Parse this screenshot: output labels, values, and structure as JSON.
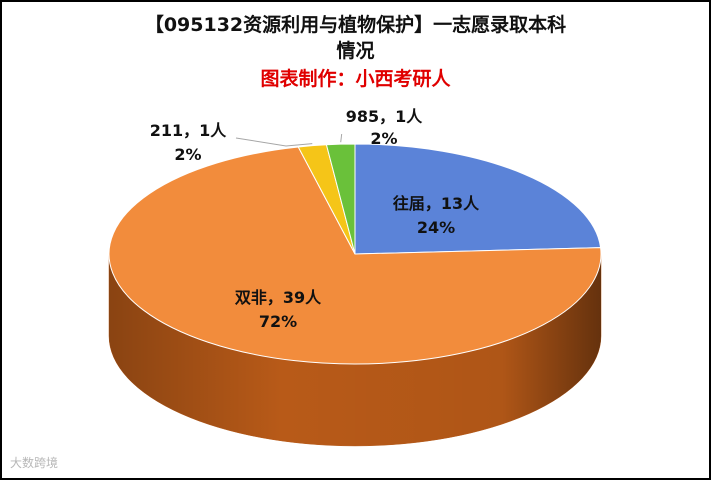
{
  "title_line1": "【095132资源利用与植物保护】一志愿录取本科",
  "title_line2": "情况",
  "subtitle": "图表制作：小西考研人",
  "watermark": "大数跨境",
  "chart_data": {
    "type": "pie",
    "three_d": true,
    "title": "【095132资源利用与植物保护】一志愿录取本科情况",
    "subtitle": "图表制作：小西考研人",
    "slices": [
      {
        "name": "往届",
        "count_label": "往届，13人",
        "pct_label": "24%",
        "value": 13,
        "percent": 24,
        "color": "#5b83d8",
        "side": "#3a5ea8"
      },
      {
        "name": "双非",
        "count_label": "双非，39人",
        "pct_label": "72%",
        "value": 39,
        "percent": 72,
        "color": "#f28c3c",
        "side": "#b85a18"
      },
      {
        "name": "211",
        "count_label": "211，1人",
        "pct_label": "2%",
        "value": 1,
        "percent": 2,
        "color": "#f5c518",
        "side": "#b48c08"
      },
      {
        "name": "985",
        "count_label": "985，1人",
        "pct_label": "2%",
        "value": 1,
        "percent": 2,
        "color": "#6ac13a",
        "side": "#3f8a1c"
      }
    ]
  }
}
